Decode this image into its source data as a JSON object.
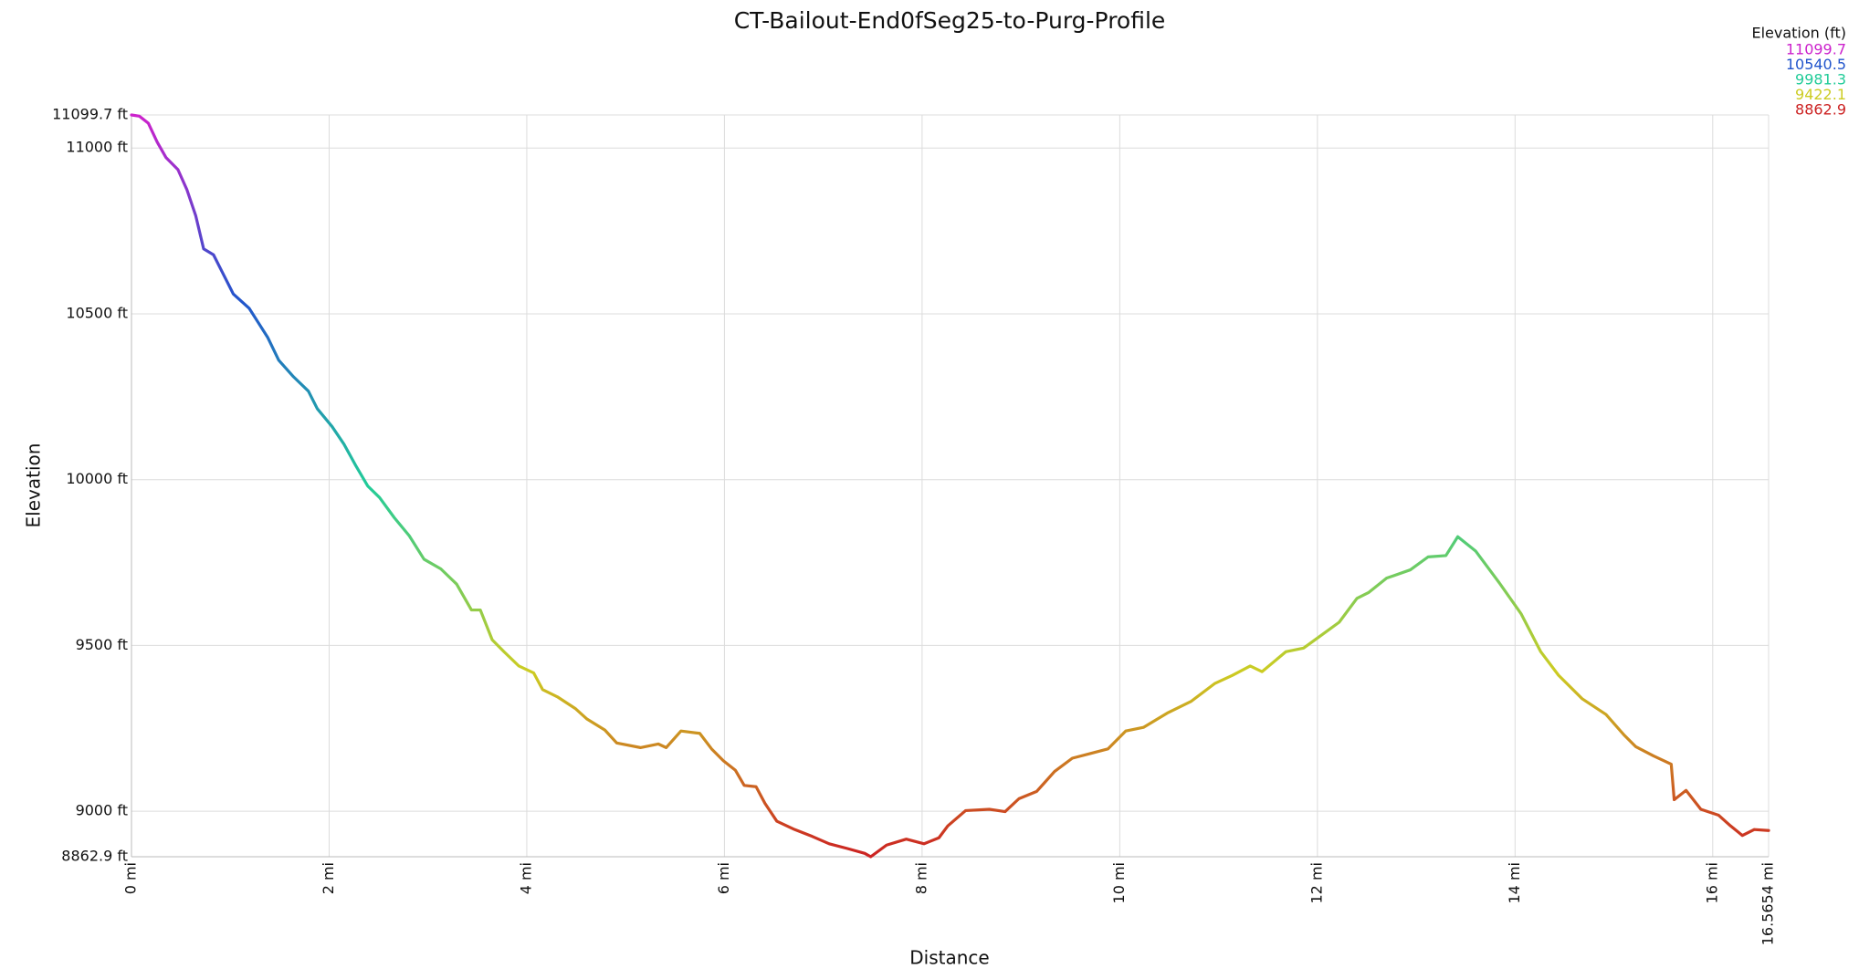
{
  "chart_data": {
    "type": "line",
    "title": "CT-Bailout-End0fSeg25-to-Purg-Profile",
    "x_label": "Distance",
    "y_label": "Elevation",
    "legend_title": "Elevation (ft)",
    "color_scale": [
      {
        "value": 11099.7,
        "color": "#cc22cc"
      },
      {
        "value": 10540.5,
        "color": "#2255cc"
      },
      {
        "value": 9981.3,
        "color": "#22cc99"
      },
      {
        "value": 9422.1,
        "color": "#cccc22"
      },
      {
        "value": 8862.9,
        "color": "#cc2222"
      }
    ],
    "xlim": [
      0,
      16.5654
    ],
    "ylim": [
      8862.9,
      11099.7
    ],
    "xticks": [
      {
        "value": 0,
        "label": "0 mi"
      },
      {
        "value": 2,
        "label": "2 mi"
      },
      {
        "value": 4,
        "label": "4 mi"
      },
      {
        "value": 6,
        "label": "6 mi"
      },
      {
        "value": 8,
        "label": "8 mi"
      },
      {
        "value": 10,
        "label": "10 mi"
      },
      {
        "value": 12,
        "label": "12 mi"
      },
      {
        "value": 14,
        "label": "14 mi"
      },
      {
        "value": 16,
        "label": "16 mi"
      },
      {
        "value": 16.5654,
        "label": "16.5654 mi"
      }
    ],
    "yticks": [
      {
        "value": 8862.9,
        "label": "8862.9 ft"
      },
      {
        "value": 9000,
        "label": "9000 ft"
      },
      {
        "value": 9500,
        "label": "9500 ft"
      },
      {
        "value": 10000,
        "label": "10000 ft"
      },
      {
        "value": 10500,
        "label": "10500 ft"
      },
      {
        "value": 11000,
        "label": "11000 ft"
      },
      {
        "value": 11099.7,
        "label": "11099.7 ft"
      }
    ],
    "grid": true,
    "x": [
      0,
      0.08,
      0.17,
      0.26,
      0.35,
      0.47,
      0.56,
      0.65,
      0.73,
      0.83,
      0.92,
      1.03,
      1.19,
      1.28,
      1.38,
      1.49,
      1.64,
      1.79,
      1.88,
      2.03,
      2.15,
      2.27,
      2.39,
      2.51,
      2.66,
      2.81,
      2.96,
      3.13,
      3.29,
      3.44,
      3.53,
      3.65,
      3.77,
      3.92,
      4.07,
      4.16,
      4.31,
      4.49,
      4.61,
      4.79,
      4.91,
      5.15,
      5.33,
      5.41,
      5.56,
      5.75,
      5.87,
      5.99,
      6.11,
      6.2,
      6.32,
      6.41,
      6.53,
      6.71,
      6.89,
      7.06,
      7.24,
      7.42,
      7.48,
      7.64,
      7.84,
      8.02,
      8.17,
      8.26,
      8.44,
      8.68,
      8.84,
      8.98,
      9.16,
      9.34,
      9.52,
      9.7,
      9.88,
      10.06,
      10.24,
      10.48,
      10.72,
      10.96,
      11.14,
      11.32,
      11.44,
      11.68,
      11.86,
      12.04,
      12.22,
      12.4,
      12.52,
      12.7,
      12.94,
      13.12,
      13.3,
      13.42,
      13.6,
      13.84,
      14.06,
      14.26,
      14.44,
      14.68,
      14.92,
      15.1,
      15.22,
      15.4,
      15.58,
      15.61,
      15.73,
      15.88,
      16.06,
      16.18,
      16.3,
      16.42,
      16.5654
    ],
    "values": [
      11099.7,
      11096,
      11075,
      11018,
      10971,
      10935,
      10875,
      10796,
      10696,
      10678,
      10625,
      10560,
      10517,
      10475,
      10428,
      10360,
      10310,
      10267,
      10214,
      10160,
      10107,
      10042,
      9981,
      9946,
      9885,
      9831,
      9760,
      9731,
      9685,
      9607,
      9607,
      9517,
      9481,
      9438,
      9417,
      9367,
      9345,
      9310,
      9278,
      9245,
      9206,
      9192,
      9203,
      9192,
      9242,
      9235,
      9188,
      9152,
      9124,
      9078,
      9074,
      9024,
      8970,
      8945,
      8924,
      8902,
      8888,
      8873,
      8862.9,
      8898,
      8916,
      8902,
      8920,
      8956,
      9002,
      9006,
      8999,
      9038,
      9060,
      9120,
      9160,
      9174,
      9188,
      9242,
      9253,
      9296,
      9331,
      9385,
      9410,
      9438,
      9421,
      9481,
      9492,
      9531,
      9570,
      9642,
      9660,
      9703,
      9728,
      9767,
      9771,
      9828,
      9785,
      9689,
      9596,
      9481,
      9410,
      9339,
      9292,
      9231,
      9195,
      9167,
      9142,
      9035,
      9063,
      9006,
      8988,
      8956,
      8927,
      8945,
      8942
    ]
  }
}
